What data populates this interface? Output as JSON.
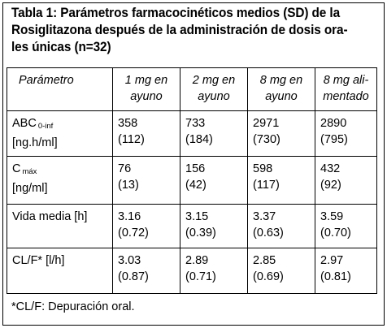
{
  "caption": {
    "line1": "Tabla 1: Parámetros farmacocinéticos medios (SD) de la",
    "line2": "Rosiglitazona después de la administración de dosis ora-",
    "line3": "les únicas (n=32)"
  },
  "table": {
    "headers": [
      [
        "Parámetro"
      ],
      [
        "1 mg en",
        "ayuno"
      ],
      [
        "2 mg en",
        "ayuno"
      ],
      [
        "8 mg en",
        "ayuno"
      ],
      [
        "8 mg ali-",
        "mentado"
      ]
    ],
    "rows": [
      {
        "param_main": "ABC",
        "param_sub": "0-inf",
        "param_unit": "[ng.h/ml]",
        "cells": [
          [
            "358",
            "(112)"
          ],
          [
            "733",
            "(184)"
          ],
          [
            "2971",
            "(730)"
          ],
          [
            "2890",
            "(795)"
          ]
        ]
      },
      {
        "param_main": "C",
        "param_sub": "máx",
        "param_unit": "[ng/ml]",
        "cells": [
          [
            "76",
            "(13)"
          ],
          [
            "156",
            "(42)"
          ],
          [
            "598",
            "(117)"
          ],
          [
            "432",
            "(92)"
          ]
        ]
      },
      {
        "param_main": "Vida media [h]",
        "param_sub": "",
        "param_unit": "",
        "cells": [
          [
            "3.16",
            "(0.72)"
          ],
          [
            "3.15",
            "(0.39)"
          ],
          [
            "3.37",
            "(0.63)"
          ],
          [
            "3.59",
            "(0.70)"
          ]
        ]
      },
      {
        "param_main": "CL/F* [l/h]",
        "param_sub": "",
        "param_unit": "",
        "cells": [
          [
            "3.03",
            "(0.87)"
          ],
          [
            "2.89",
            "(0.71)"
          ],
          [
            "2.85",
            "(0.69)"
          ],
          [
            "2.97",
            "(0.81)"
          ]
        ]
      }
    ]
  },
  "footnote": "*CL/F: Depuración oral."
}
